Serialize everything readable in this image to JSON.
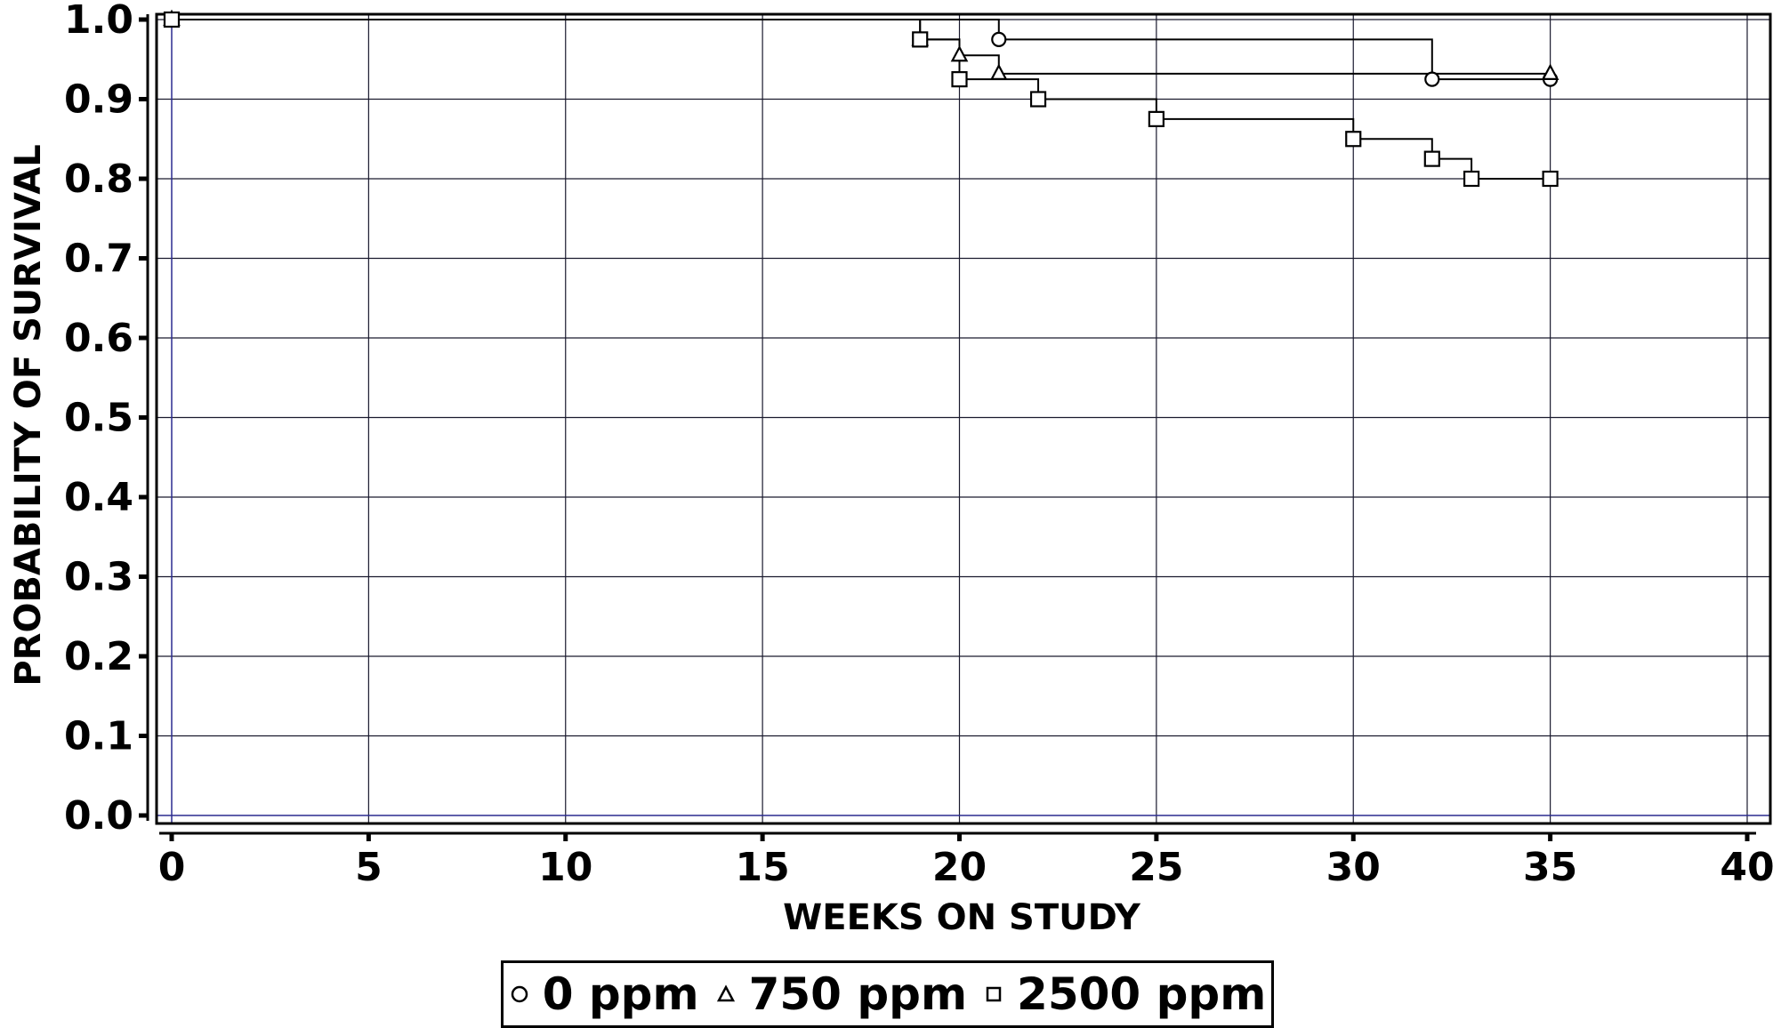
{
  "chart_data": {
    "type": "line",
    "step": true,
    "xlabel": "WEEKS ON STUDY",
    "ylabel": "PROBABILITY OF SURVIVAL",
    "xlim": [
      0,
      40
    ],
    "ylim": [
      0,
      1.0
    ],
    "xticks": [
      "0",
      "5",
      "10",
      "15",
      "20",
      "25",
      "30",
      "35",
      "40"
    ],
    "yticks": [
      "0.0",
      "0.1",
      "0.2",
      "0.3",
      "0.4",
      "0.5",
      "0.6",
      "0.7",
      "0.8",
      "0.9",
      "1.0"
    ],
    "grid": true,
    "legend_position": "bottom-center",
    "series": [
      {
        "name": "0 ppm",
        "marker": "circle",
        "x": [
          0,
          21,
          32,
          35
        ],
        "y": [
          1.0,
          0.975,
          0.925,
          0.925
        ]
      },
      {
        "name": "750 ppm",
        "marker": "triangle",
        "x": [
          0,
          19,
          20,
          21,
          35
        ],
        "y": [
          1.0,
          0.975,
          0.955,
          0.932,
          0.932
        ]
      },
      {
        "name": "2500 ppm",
        "marker": "square",
        "x": [
          0,
          19,
          20,
          22,
          25,
          30,
          32,
          33,
          35
        ],
        "y": [
          1.0,
          0.975,
          0.925,
          0.9,
          0.875,
          0.85,
          0.825,
          0.8,
          0.8
        ]
      }
    ],
    "colors": {
      "line": "#000000",
      "grid": "#1a1a2e",
      "zero_axis": "#2b2b8f"
    }
  }
}
